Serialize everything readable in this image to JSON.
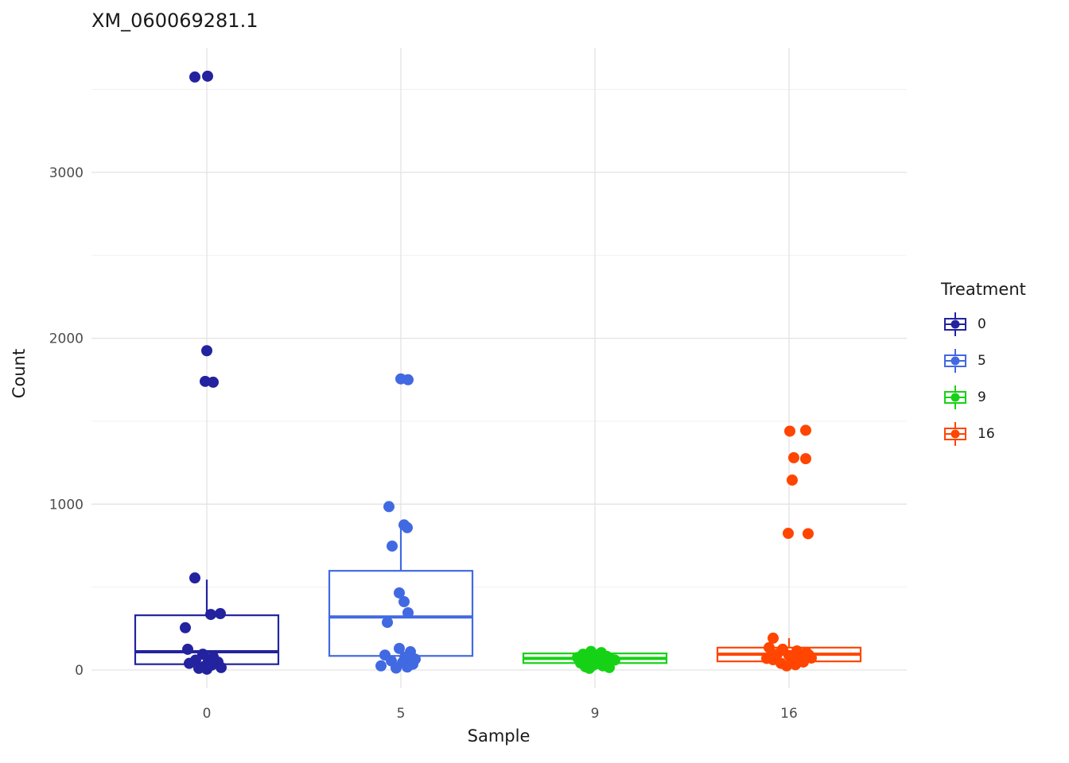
{
  "chart_data": {
    "type": "boxplot",
    "title": "XM_060069281.1",
    "xlabel": "Sample",
    "ylabel": "Count",
    "legend_title": "Treatment",
    "categories": [
      "0",
      "5",
      "9",
      "16"
    ],
    "y_ticks": [
      0,
      1000,
      2000,
      3000
    ],
    "y_minor_ticks": [
      500,
      1500,
      2500,
      3500
    ],
    "ylim": [
      -110,
      3740
    ],
    "legend_position": "right",
    "grid": true,
    "groups": [
      {
        "label": "0",
        "color": "#23239f",
        "box": {
          "q1": 35,
          "median": 110,
          "q3": 330,
          "whisker_low": 5,
          "whisker_high": 545
        },
        "points_dx_value": [
          [
            -15,
            3575
          ],
          [
            1,
            3580
          ],
          [
            0,
            1925
          ],
          [
            -2,
            1740
          ],
          [
            8,
            1735
          ],
          [
            -15,
            555
          ],
          [
            17,
            340
          ],
          [
            5,
            335
          ],
          [
            -27,
            255
          ],
          [
            -24,
            125
          ],
          [
            -5,
            95
          ],
          [
            8,
            80
          ],
          [
            -14,
            60
          ],
          [
            2,
            55
          ],
          [
            14,
            48
          ],
          [
            -22,
            40
          ],
          [
            6,
            30
          ],
          [
            -3,
            22
          ],
          [
            18,
            15
          ],
          [
            -10,
            10
          ],
          [
            0,
            5
          ]
        ]
      },
      {
        "label": "5",
        "color": "#4169e1",
        "box": {
          "q1": 85,
          "median": 320,
          "q3": 598,
          "whisker_low": 12,
          "whisker_high": 875
        },
        "points_dx_value": [
          [
            0,
            1755
          ],
          [
            9,
            1750
          ],
          [
            -15,
            985
          ],
          [
            4,
            875
          ],
          [
            8,
            858
          ],
          [
            -11,
            747
          ],
          [
            -2,
            465
          ],
          [
            4,
            412
          ],
          [
            9,
            345
          ],
          [
            -17,
            287
          ],
          [
            -2,
            130
          ],
          [
            12,
            110
          ],
          [
            -20,
            90
          ],
          [
            5,
            78
          ],
          [
            18,
            65
          ],
          [
            -12,
            55
          ],
          [
            2,
            45
          ],
          [
            15,
            35
          ],
          [
            -25,
            25
          ],
          [
            8,
            18
          ],
          [
            -6,
            12
          ]
        ]
      },
      {
        "label": "9",
        "color": "#16d216",
        "box": {
          "q1": 42,
          "median": 70,
          "q3": 100,
          "whisker_low": 12,
          "whisker_high": 118
        },
        "points_dx_value": [
          [
            -5,
            112
          ],
          [
            8,
            105
          ],
          [
            -15,
            95
          ],
          [
            2,
            88
          ],
          [
            15,
            82
          ],
          [
            -22,
            75
          ],
          [
            6,
            70
          ],
          [
            20,
            65
          ],
          [
            -10,
            58
          ],
          [
            0,
            52
          ],
          [
            12,
            48
          ],
          [
            -18,
            42
          ],
          [
            5,
            38
          ],
          [
            25,
            60
          ],
          [
            -2,
            30
          ],
          [
            10,
            25
          ],
          [
            -12,
            20
          ],
          [
            18,
            15
          ],
          [
            -7,
            10
          ],
          [
            3,
            70
          ]
        ]
      },
      {
        "label": "16",
        "color": "#ff4500",
        "box": {
          "q1": 52,
          "median": 95,
          "q3": 135,
          "whisker_low": 15,
          "whisker_high": 192
        },
        "points_dx_value": [
          [
            1,
            1440
          ],
          [
            21,
            1445
          ],
          [
            6,
            1280
          ],
          [
            21,
            1274
          ],
          [
            4,
            1145
          ],
          [
            -1,
            824
          ],
          [
            24,
            822
          ],
          [
            -20,
            192
          ],
          [
            -25,
            135
          ],
          [
            -8,
            125
          ],
          [
            10,
            115
          ],
          [
            22,
            105
          ],
          [
            -15,
            95
          ],
          [
            0,
            88
          ],
          [
            14,
            80
          ],
          [
            28,
            72
          ],
          [
            -20,
            62
          ],
          [
            5,
            55
          ],
          [
            18,
            48
          ],
          [
            -10,
            40
          ],
          [
            8,
            32
          ],
          [
            -3,
            25
          ],
          [
            25,
            90
          ],
          [
            -28,
            70
          ]
        ]
      }
    ]
  }
}
